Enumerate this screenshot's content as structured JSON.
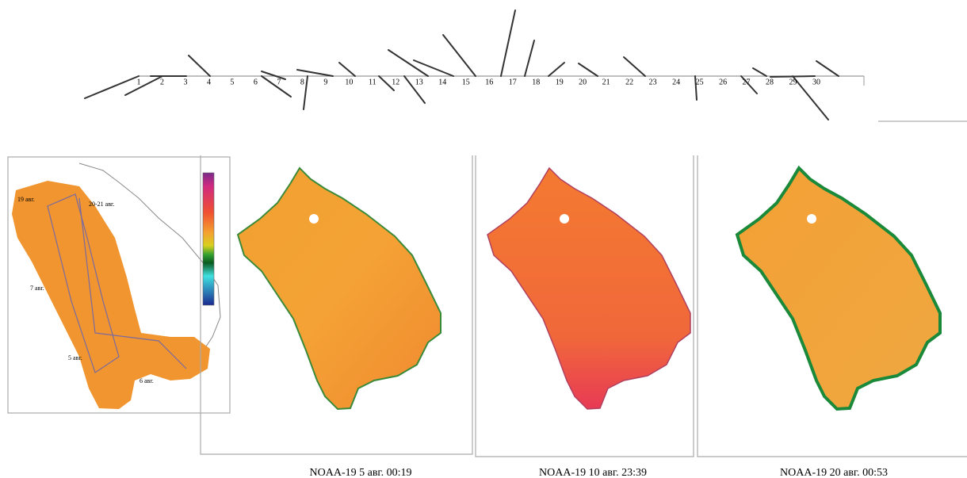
{
  "wind_axis": {
    "day_labels": [
      "1",
      "2",
      "3",
      "4",
      "5",
      "6",
      "7",
      "8",
      "9",
      "10",
      "11",
      "12",
      "13",
      "14",
      "15",
      "16",
      "17",
      "18",
      "19",
      "20",
      "21",
      "22",
      "23",
      "24",
      "25",
      "26",
      "27",
      "28",
      "29",
      "30"
    ]
  },
  "inset_map": {
    "labels": [
      "19 авг.",
      "20-21 авг.",
      "7 авг.",
      "5 авг.",
      "6 авг."
    ]
  },
  "captions": [
    "NOAA-19  5 авг. 00:19",
    "NOAA-19  10 авг. 23:39",
    "NOAA-19  20 авг. 00:53"
  ]
}
